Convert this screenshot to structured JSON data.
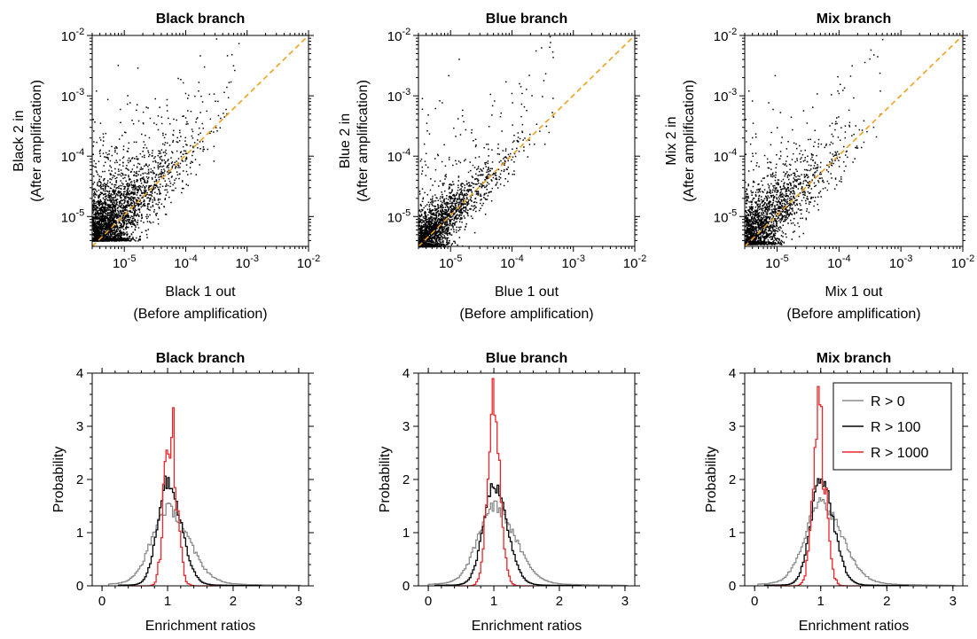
{
  "chart_data": [
    {
      "type": "scatter",
      "title": "Black branch",
      "xlabel": "Black 1 out",
      "xlabel2": "(Before amplification)",
      "ylabel": "Black 2 in",
      "ylabel2": "(After amplification)",
      "xscale": "log",
      "yscale": "log",
      "xlim": [
        3e-06,
        0.01
      ],
      "ylim": [
        3.2e-06,
        0.01
      ],
      "xticks": [
        {
          "base": "10",
          "exp": "-5"
        },
        {
          "base": "10",
          "exp": "-4"
        },
        {
          "base": "10",
          "exp": "-3"
        },
        {
          "base": "10",
          "exp": "-2"
        }
      ],
      "yticks": [
        {
          "base": "10",
          "exp": "-5"
        },
        {
          "base": "10",
          "exp": "-4"
        },
        {
          "base": "10",
          "exp": "-3"
        },
        {
          "base": "10",
          "exp": "-2"
        }
      ],
      "reference_line": {
        "type": "y=x",
        "color": "#f0a020",
        "style": "dashed"
      },
      "point_cloud": {
        "x_min": 3e-06,
        "y_floor": 4e-06,
        "main_extent": 0.0012,
        "spread": "wide"
      }
    },
    {
      "type": "scatter",
      "title": "Blue branch",
      "xlabel": "Blue 1 out",
      "xlabel2": "(Before amplification)",
      "ylabel": "Blue 2 in",
      "ylabel2": "(After amplification)",
      "xscale": "log",
      "yscale": "log",
      "xlim": [
        3e-06,
        0.01
      ],
      "ylim": [
        3.2e-06,
        0.01
      ],
      "xticks": [
        {
          "base": "10",
          "exp": "-5"
        },
        {
          "base": "10",
          "exp": "-4"
        },
        {
          "base": "10",
          "exp": "-3"
        },
        {
          "base": "10",
          "exp": "-2"
        }
      ],
      "yticks": [
        {
          "base": "10",
          "exp": "-5"
        },
        {
          "base": "10",
          "exp": "-4"
        },
        {
          "base": "10",
          "exp": "-3"
        },
        {
          "base": "10",
          "exp": "-2"
        }
      ],
      "reference_line": {
        "type": "y=x",
        "color": "#f0a020",
        "style": "dashed"
      },
      "point_cloud": {
        "x_min": 3e-06,
        "y_floor": 3.2e-06,
        "main_extent": 0.0009,
        "spread": "narrow"
      }
    },
    {
      "type": "scatter",
      "title": "Mix branch",
      "xlabel": "Mix 1 out",
      "xlabel2": "(Before amplification)",
      "ylabel": "Mix 2 in",
      "ylabel2": "(After amplification)",
      "xscale": "log",
      "yscale": "log",
      "xlim": [
        3e-06,
        0.01
      ],
      "ylim": [
        3.2e-06,
        0.01
      ],
      "xticks": [
        {
          "base": "10",
          "exp": "-5"
        },
        {
          "base": "10",
          "exp": "-4"
        },
        {
          "base": "10",
          "exp": "-3"
        },
        {
          "base": "10",
          "exp": "-2"
        }
      ],
      "yticks": [
        {
          "base": "10",
          "exp": "-5"
        },
        {
          "base": "10",
          "exp": "-4"
        },
        {
          "base": "10",
          "exp": "-3"
        },
        {
          "base": "10",
          "exp": "-2"
        }
      ],
      "reference_line": {
        "type": "y=x",
        "color": "#f0a020",
        "style": "dashed"
      },
      "point_cloud": {
        "x_min": 3e-06,
        "y_floor": 3.5e-06,
        "main_extent": 0.0011,
        "spread": "medium"
      }
    },
    {
      "type": "line",
      "style": "step-histogram",
      "title": "Black branch",
      "xlabel": "Enrichment ratios",
      "ylabel": "Probability",
      "xlim": [
        -0.15,
        3.15
      ],
      "ylim": [
        0,
        4
      ],
      "xticks": [
        "0",
        "1",
        "2",
        "3"
      ],
      "yticks": [
        "0",
        "1",
        "2",
        "3",
        "4"
      ],
      "series": [
        {
          "name": "R > 0",
          "color": "#8c8c8c",
          "peak_x": 1.0,
          "peak_y": 1.35,
          "sigma_left": 0.24,
          "sigma_right": 0.32,
          "tail": 0.1,
          "x_range": [
            0.1,
            3.0
          ],
          "noise": 0.08
        },
        {
          "name": "R > 100",
          "color": "#000000",
          "peak_x": 1.0,
          "peak_y": 1.95,
          "sigma_left": 0.15,
          "sigma_right": 0.2,
          "tail": 0.03,
          "x_range": [
            0.25,
            2.4
          ],
          "noise": 0.08
        },
        {
          "name": "R > 1000",
          "color": "#e8262a",
          "peak_x": 1.03,
          "peak_y": 3.2,
          "sigma_left": 0.08,
          "sigma_right": 0.1,
          "tail": 0.0,
          "x_range": [
            0.45,
            1.75
          ],
          "noise": 0.35
        }
      ]
    },
    {
      "type": "line",
      "style": "step-histogram",
      "title": "Blue branch",
      "xlabel": "Enrichment ratios",
      "ylabel": "Probability",
      "xlim": [
        -0.15,
        3.15
      ],
      "ylim": [
        0,
        4
      ],
      "xticks": [
        "0",
        "1",
        "2",
        "3"
      ],
      "yticks": [
        "0",
        "1",
        "2",
        "3",
        "4"
      ],
      "series": [
        {
          "name": "R > 0",
          "color": "#8c8c8c",
          "peak_x": 1.0,
          "peak_y": 1.4,
          "sigma_left": 0.24,
          "sigma_right": 0.32,
          "tail": 0.1,
          "x_range": [
            0.0,
            3.0
          ],
          "noise": 0.08
        },
        {
          "name": "R > 100",
          "color": "#000000",
          "peak_x": 1.0,
          "peak_y": 1.85,
          "sigma_left": 0.16,
          "sigma_right": 0.2,
          "tail": 0.03,
          "x_range": [
            0.1,
            2.3
          ],
          "noise": 0.06
        },
        {
          "name": "R > 1000",
          "color": "#e8262a",
          "peak_x": 0.99,
          "peak_y": 3.4,
          "sigma_left": 0.09,
          "sigma_right": 0.1,
          "tail": 0.0,
          "x_range": [
            0.45,
            1.6
          ],
          "noise": 0.15
        }
      ]
    },
    {
      "type": "line",
      "style": "step-histogram",
      "title": "Mix branch",
      "xlabel": "Enrichment ratios",
      "ylabel": "Probability",
      "xlim": [
        -0.15,
        3.15
      ],
      "ylim": [
        0,
        4
      ],
      "xticks": [
        "0",
        "1",
        "2",
        "3"
      ],
      "yticks": [
        "0",
        "1",
        "2",
        "3",
        "4"
      ],
      "legend": {
        "position": "top-right",
        "entries": [
          "R > 0",
          "R > 100",
          "R > 1000"
        ]
      },
      "series": [
        {
          "name": "R > 0",
          "color": "#8c8c8c",
          "peak_x": 1.0,
          "peak_y": 1.45,
          "sigma_left": 0.24,
          "sigma_right": 0.32,
          "tail": 0.1,
          "x_range": [
            0.05,
            3.0
          ],
          "noise": 0.08
        },
        {
          "name": "R > 100",
          "color": "#000000",
          "peak_x": 1.0,
          "peak_y": 2.0,
          "sigma_left": 0.15,
          "sigma_right": 0.19,
          "tail": 0.03,
          "x_range": [
            0.15,
            2.3
          ],
          "noise": 0.08
        },
        {
          "name": "R > 1000",
          "color": "#e8262a",
          "peak_x": 0.97,
          "peak_y": 3.15,
          "sigma_left": 0.09,
          "sigma_right": 0.1,
          "tail": 0.0,
          "x_range": [
            0.3,
            1.6
          ],
          "noise": 0.3
        }
      ]
    }
  ]
}
